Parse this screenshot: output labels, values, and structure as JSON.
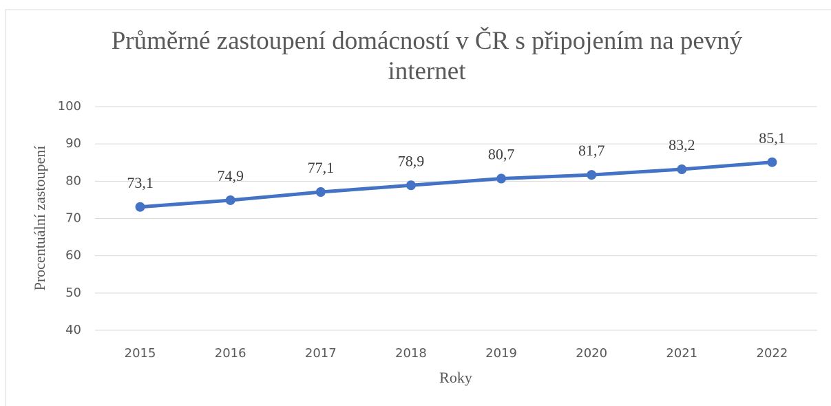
{
  "chart_data": {
    "type": "line",
    "title": "Průměrné zastoupení domácností v ČR s připojením na pevný internet",
    "x_label": "Roky",
    "y_label": "Procentuální zastoupení",
    "categories": [
      "2015",
      "2016",
      "2017",
      "2018",
      "2019",
      "2020",
      "2021",
      "2022"
    ],
    "series": [
      {
        "name": "Procentuální zastoupení",
        "color": "#4472c4",
        "values": [
          73.1,
          74.9,
          77.1,
          78.9,
          80.7,
          81.7,
          83.2,
          85.1
        ],
        "value_labels": [
          "73,1",
          "74,9",
          "77,1",
          "78,9",
          "80,7",
          "81,7",
          "83,2",
          "85,1"
        ]
      }
    ],
    "ylim": [
      40,
      100
    ],
    "yticks": [
      40,
      50,
      60,
      70,
      80,
      90,
      100
    ],
    "grid": true
  }
}
